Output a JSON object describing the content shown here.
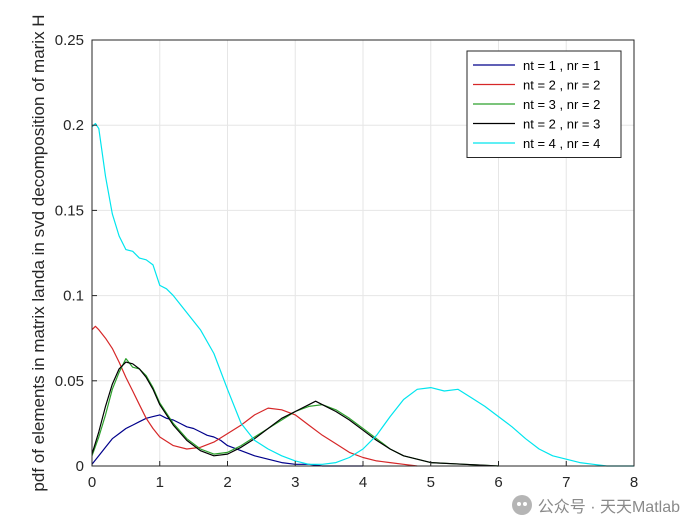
{
  "chart_data": {
    "type": "line",
    "title": "",
    "xlabel": "",
    "ylabel": "pdf of elements in matrix landa in svd decomposition of marix H",
    "xlim": [
      0,
      8
    ],
    "ylim": [
      0,
      0.25
    ],
    "xticks": [
      "0",
      "1",
      "2",
      "3",
      "4",
      "5",
      "6",
      "7",
      "8"
    ],
    "yticks": [
      "0",
      "0.05",
      "0.1",
      "0.15",
      "0.2",
      "0.25"
    ],
    "grid": true,
    "legend_position": "top-right",
    "series": [
      {
        "name": "nt = 1 , nr = 1",
        "color": "#00008B",
        "x": [
          0,
          0.1,
          0.2,
          0.3,
          0.4,
          0.5,
          0.6,
          0.7,
          0.8,
          0.9,
          1.0,
          1.1,
          1.2,
          1.3,
          1.4,
          1.5,
          1.6,
          1.7,
          1.8,
          1.9,
          2.0,
          2.2,
          2.4,
          2.6,
          2.8,
          3.0,
          3.2,
          3.4,
          3.6,
          4.0
        ],
        "y": [
          0.001,
          0.006,
          0.011,
          0.016,
          0.019,
          0.022,
          0.024,
          0.026,
          0.028,
          0.029,
          0.03,
          0.028,
          0.027,
          0.025,
          0.023,
          0.022,
          0.02,
          0.018,
          0.017,
          0.015,
          0.012,
          0.009,
          0.006,
          0.004,
          0.002,
          0.001,
          0.001,
          0.0,
          0.0,
          0.0
        ]
      },
      {
        "name": "nt = 2 , nr = 2",
        "color": "#D62728",
        "x": [
          0,
          0.05,
          0.1,
          0.2,
          0.3,
          0.4,
          0.5,
          0.6,
          0.7,
          0.8,
          0.9,
          1.0,
          1.2,
          1.4,
          1.6,
          1.8,
          2.0,
          2.2,
          2.4,
          2.6,
          2.8,
          3.0,
          3.2,
          3.4,
          3.6,
          3.8,
          4.0,
          4.2,
          4.4,
          4.6,
          4.8
        ],
        "y": [
          0.08,
          0.082,
          0.08,
          0.075,
          0.069,
          0.061,
          0.052,
          0.044,
          0.036,
          0.028,
          0.022,
          0.017,
          0.012,
          0.01,
          0.011,
          0.014,
          0.019,
          0.024,
          0.03,
          0.034,
          0.033,
          0.03,
          0.024,
          0.018,
          0.013,
          0.008,
          0.005,
          0.003,
          0.002,
          0.001,
          0.0
        ]
      },
      {
        "name": "nt = 3 , nr = 2",
        "color": "#2CA02C",
        "x": [
          0,
          0.1,
          0.2,
          0.3,
          0.4,
          0.5,
          0.6,
          0.7,
          0.8,
          0.9,
          1.0,
          1.2,
          1.4,
          1.6,
          1.8,
          2.0,
          2.2,
          2.4,
          2.6,
          2.8,
          3.0,
          3.2,
          3.4,
          3.6,
          3.8,
          4.0,
          4.2,
          4.4,
          4.6,
          5.0,
          5.5,
          6.0
        ],
        "y": [
          0.006,
          0.017,
          0.03,
          0.045,
          0.055,
          0.063,
          0.058,
          0.057,
          0.053,
          0.046,
          0.037,
          0.025,
          0.016,
          0.01,
          0.007,
          0.008,
          0.012,
          0.017,
          0.022,
          0.027,
          0.032,
          0.035,
          0.036,
          0.033,
          0.028,
          0.022,
          0.016,
          0.01,
          0.006,
          0.002,
          0.001,
          0.0
        ]
      },
      {
        "name": "nt = 2 , nr = 3",
        "color": "#000000",
        "x": [
          0,
          0.1,
          0.2,
          0.3,
          0.4,
          0.5,
          0.6,
          0.7,
          0.8,
          0.9,
          1.0,
          1.2,
          1.4,
          1.6,
          1.8,
          2.0,
          2.2,
          2.4,
          2.6,
          2.8,
          3.0,
          3.2,
          3.3,
          3.4,
          3.6,
          3.8,
          4.0,
          4.2,
          4.4,
          4.6,
          5.0,
          5.5,
          6.0
        ],
        "y": [
          0.007,
          0.02,
          0.035,
          0.048,
          0.057,
          0.061,
          0.06,
          0.057,
          0.052,
          0.045,
          0.036,
          0.024,
          0.015,
          0.009,
          0.006,
          0.007,
          0.011,
          0.016,
          0.022,
          0.028,
          0.032,
          0.036,
          0.038,
          0.036,
          0.032,
          0.027,
          0.021,
          0.015,
          0.01,
          0.006,
          0.002,
          0.001,
          0.0
        ]
      },
      {
        "name": "nt = 4 , nr = 4",
        "color": "#00E5EE",
        "x": [
          0,
          0.05,
          0.1,
          0.2,
          0.3,
          0.4,
          0.5,
          0.6,
          0.7,
          0.8,
          0.9,
          1.0,
          1.1,
          1.2,
          1.4,
          1.6,
          1.8,
          2.0,
          2.2,
          2.4,
          2.6,
          2.8,
          3.0,
          3.2,
          3.4,
          3.6,
          3.8,
          4.0,
          4.2,
          4.4,
          4.6,
          4.8,
          5.0,
          5.2,
          5.4,
          5.6,
          5.8,
          6.0,
          6.2,
          6.4,
          6.6,
          6.8,
          7.0,
          7.2,
          7.4,
          7.6,
          8.0
        ],
        "y": [
          0.199,
          0.201,
          0.198,
          0.17,
          0.148,
          0.135,
          0.127,
          0.126,
          0.122,
          0.121,
          0.118,
          0.106,
          0.104,
          0.1,
          0.09,
          0.08,
          0.066,
          0.045,
          0.025,
          0.015,
          0.01,
          0.006,
          0.003,
          0.001,
          0.001,
          0.002,
          0.005,
          0.01,
          0.018,
          0.029,
          0.039,
          0.045,
          0.046,
          0.044,
          0.045,
          0.04,
          0.035,
          0.029,
          0.023,
          0.016,
          0.01,
          0.006,
          0.004,
          0.002,
          0.001,
          0.0,
          0.0
        ]
      }
    ]
  },
  "watermark": {
    "text": "公众号 · 天天Matlab",
    "icon": "wechat-icon"
  }
}
